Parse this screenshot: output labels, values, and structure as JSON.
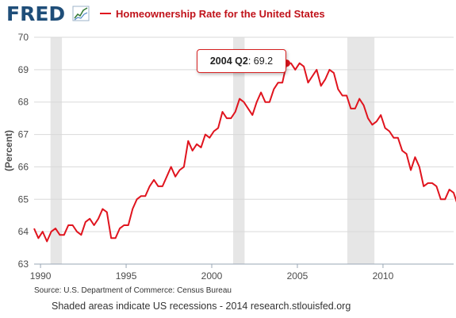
{
  "header": {
    "logo_text": "FRED",
    "logo_icon": "fred-sparkline-icon"
  },
  "colors": {
    "line": "#e0141e",
    "recession_shade": "#e6e6e6",
    "grid": "#d9d9d9",
    "logo": "#1f4e79",
    "tooltip_border": "#d62020"
  },
  "tooltip": {
    "period": "2004 Q2",
    "separator": ":",
    "value": "69.2"
  },
  "footer": {
    "source": "Source: U.S. Department of Commerce: Census Bureau",
    "note": "Shaded areas indicate US recessions - 2014 research.stlouisfed.org"
  },
  "chart_data": {
    "type": "line",
    "title": "Homeownership Rate for the United States",
    "xlabel": "",
    "ylabel": "(Percent)",
    "xlim": [
      1989.625,
      2014.125
    ],
    "ylim": [
      63,
      70
    ],
    "x_ticks": [
      1990,
      1995,
      2000,
      2005,
      2010
    ],
    "y_ticks": [
      63,
      64,
      65,
      66,
      67,
      68,
      69,
      70
    ],
    "grid": "horizontal",
    "legend": "top",
    "recessions": [
      [
        1990.583,
        1991.25
      ],
      [
        2001.25,
        2001.917
      ],
      [
        2007.917,
        2009.5
      ]
    ],
    "highlight": {
      "x": 2004.375,
      "y": 69.2
    },
    "series": [
      {
        "name": "Homeownership Rate for the United States",
        "x_start": 1989.625,
        "x_step": 0.25,
        "values": [
          64.1,
          63.8,
          64.0,
          63.7,
          64.0,
          64.1,
          63.9,
          63.9,
          64.2,
          64.2,
          64.0,
          63.9,
          64.3,
          64.4,
          64.2,
          64.4,
          64.7,
          64.6,
          63.8,
          63.8,
          64.1,
          64.2,
          64.2,
          64.7,
          65.0,
          65.1,
          65.1,
          65.4,
          65.6,
          65.4,
          65.4,
          65.7,
          66.0,
          65.7,
          65.9,
          66.0,
          66.8,
          66.5,
          66.7,
          66.6,
          67.0,
          66.9,
          67.1,
          67.2,
          67.7,
          67.5,
          67.5,
          67.7,
          68.1,
          68.0,
          67.8,
          67.6,
          68.0,
          68.3,
          68.0,
          68.0,
          68.4,
          68.6,
          68.6,
          69.2,
          69.2,
          69.0,
          69.2,
          69.1,
          68.6,
          68.8,
          69.0,
          68.5,
          68.7,
          69.0,
          68.9,
          68.4,
          68.2,
          68.2,
          67.8,
          67.8,
          68.1,
          67.9,
          67.5,
          67.3,
          67.4,
          67.6,
          67.2,
          67.1,
          66.9,
          66.9,
          66.5,
          66.4,
          65.9,
          66.3,
          66.0,
          65.4,
          65.5,
          65.5,
          65.4,
          65.0,
          65.0,
          65.3,
          65.2,
          64.8
        ]
      }
    ]
  }
}
